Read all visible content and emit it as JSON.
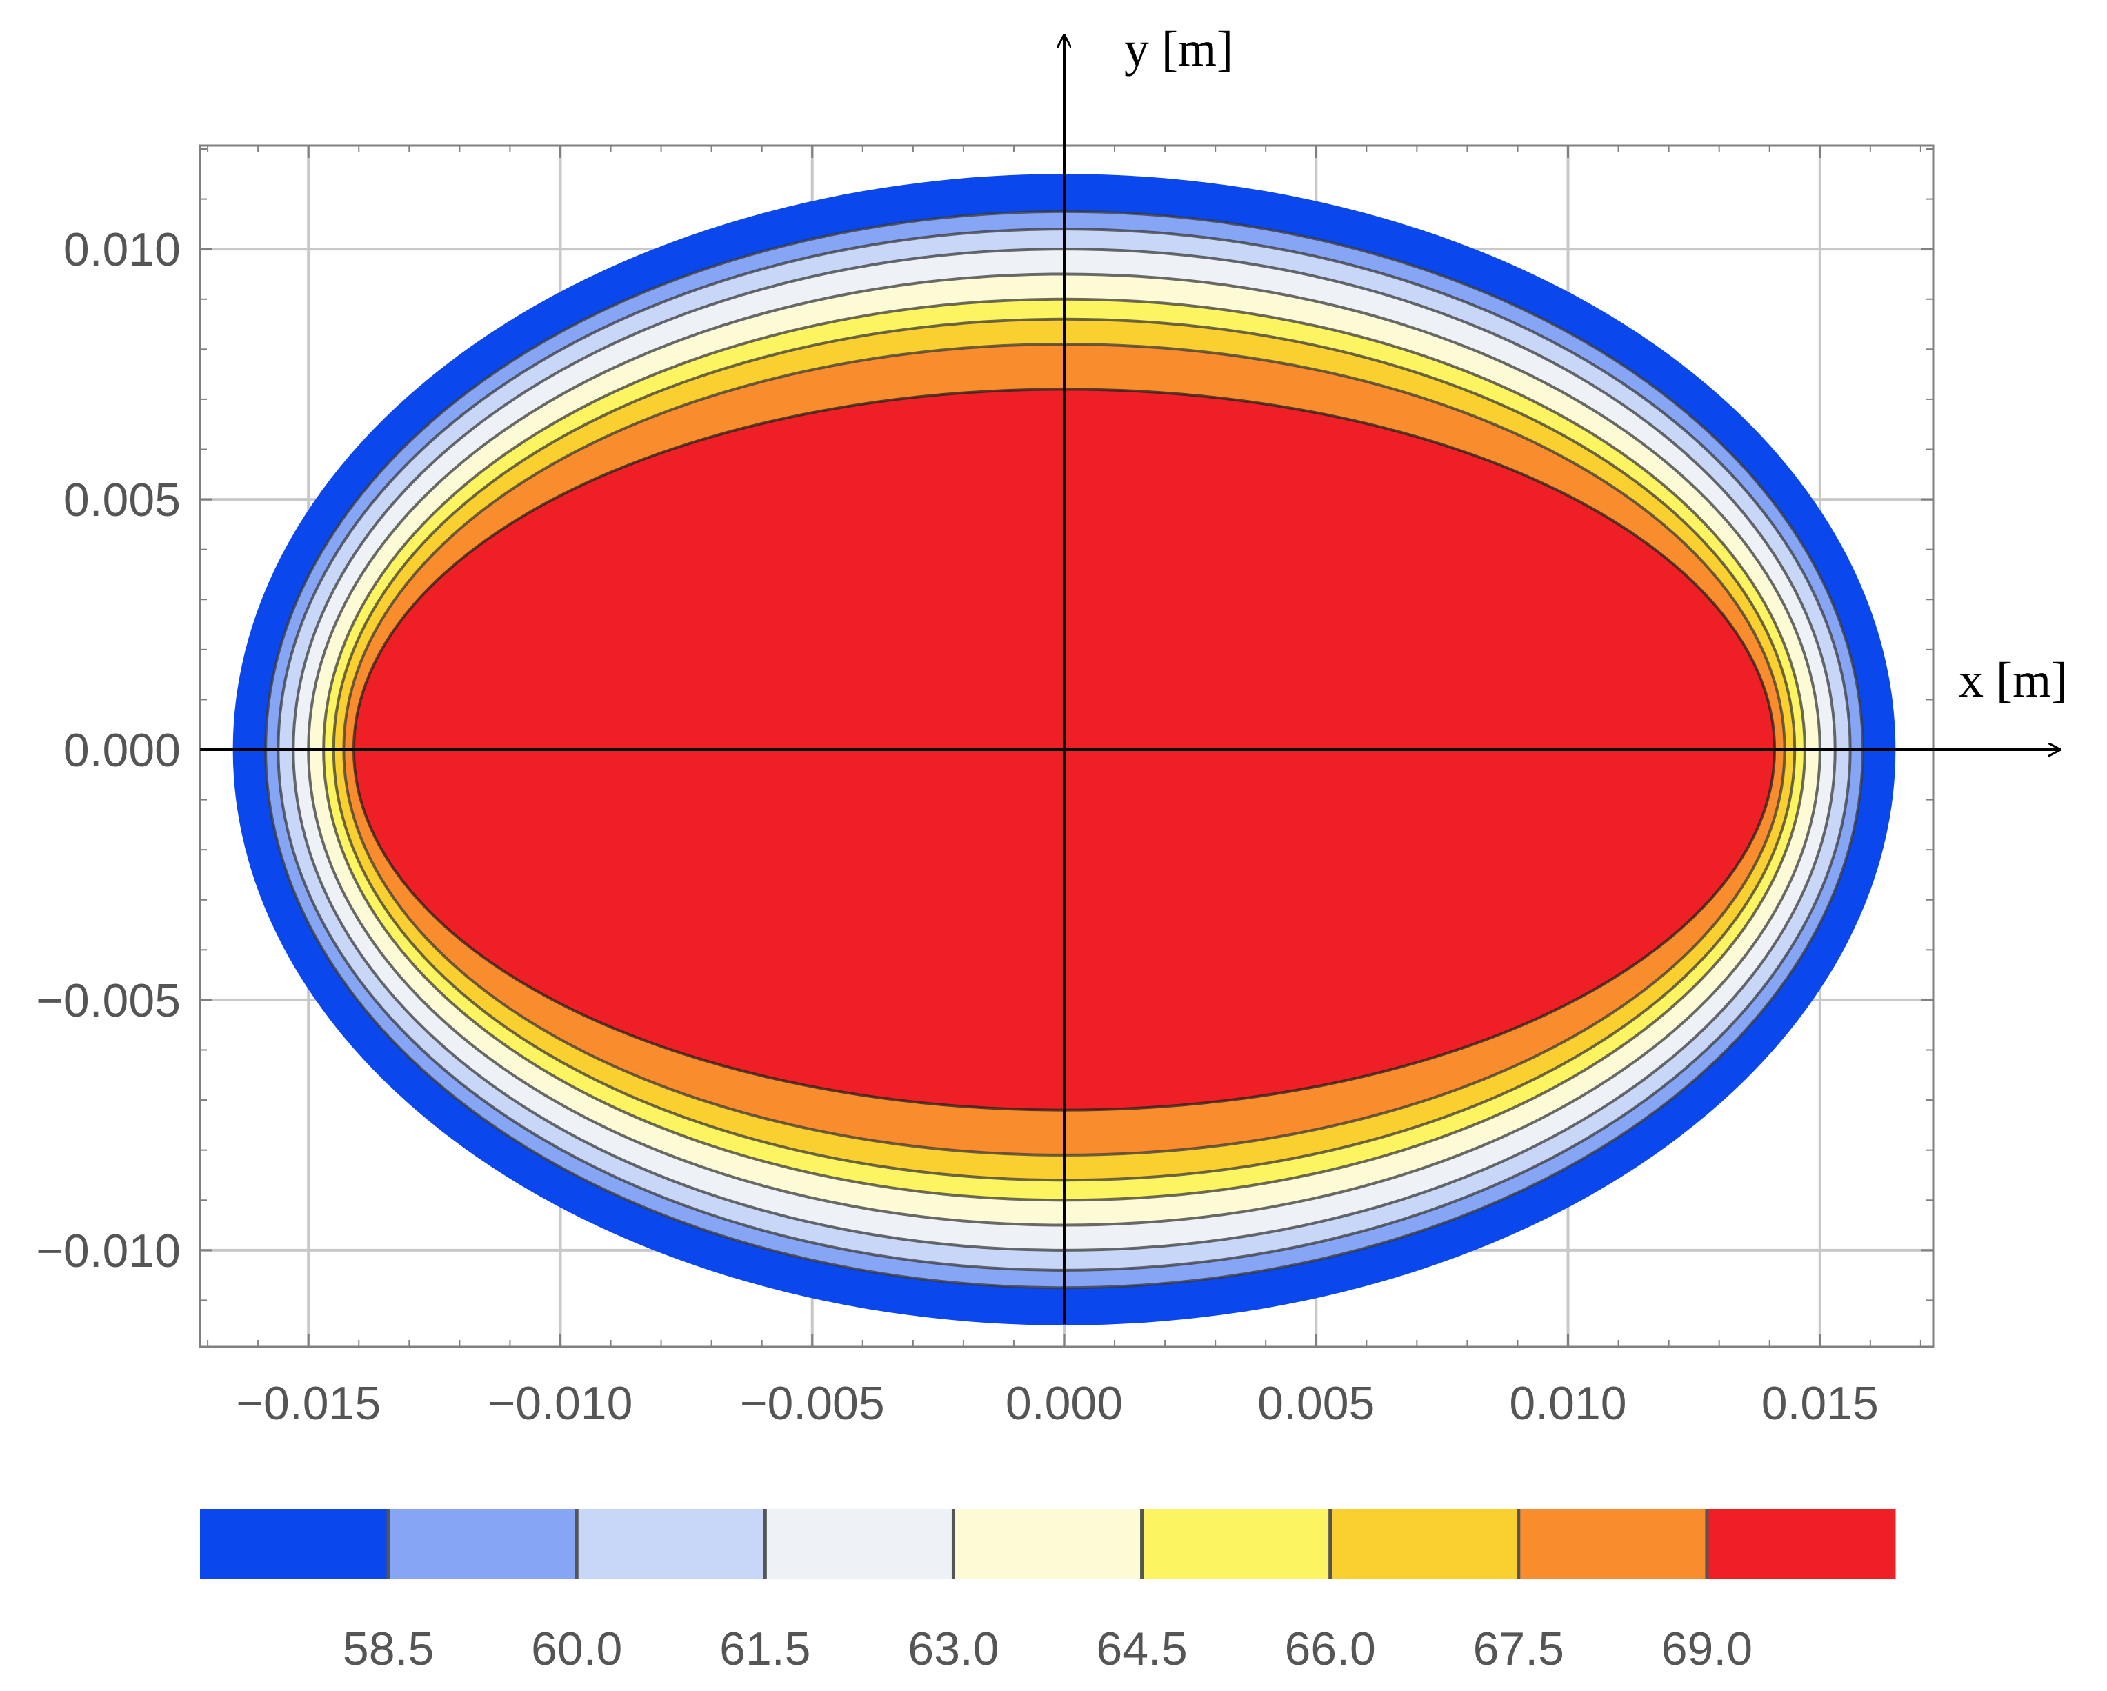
{
  "chart_data": {
    "type": "contour",
    "title": "",
    "xlabel": "x [m]",
    "ylabel": "y [m]",
    "xlim": [
      -0.0172,
      0.0172
    ],
    "ylim": [
      -0.012,
      0.012
    ],
    "x_ticks": [
      -0.015,
      -0.01,
      -0.005,
      0.0,
      0.005,
      0.01,
      0.015
    ],
    "y_ticks": [
      -0.01,
      -0.005,
      0.0,
      0.005,
      0.01
    ],
    "x_tick_labels": [
      "−0.015",
      "−0.010",
      "−0.005",
      "0.000",
      "0.005",
      "0.010",
      "0.015"
    ],
    "y_tick_labels": [
      "−0.010",
      "−0.005",
      "0.000",
      "0.005",
      "0.010"
    ],
    "grid": true,
    "domain_ellipse": {
      "semi_axis_x": 0.0165,
      "semi_axis_y": 0.0115
    },
    "contour_levels": [
      58.5,
      60.0,
      61.5,
      63.0,
      64.5,
      66.0,
      67.5,
      69.0
    ],
    "contour_level_labels": [
      "58.5",
      "60.0",
      "61.5",
      "63.0",
      "64.5",
      "66.0",
      "67.5",
      "69.0"
    ],
    "band_colors": [
      "#0a48ee",
      "#86a5f5",
      "#c8d6f8",
      "#eef2f7",
      "#fdfbd6",
      "#fdf461",
      "#f9d030",
      "#f98c2c",
      "#ee1f25"
    ],
    "contour_semi_axes": [
      {
        "level": 58.5,
        "ax": 0.01585,
        "ay": 0.01075
      },
      {
        "level": 60.0,
        "ax": 0.0156,
        "ay": 0.0104
      },
      {
        "level": 61.5,
        "ax": 0.0153,
        "ay": 0.01
      },
      {
        "level": 63.0,
        "ax": 0.015,
        "ay": 0.0095
      },
      {
        "level": 64.5,
        "ax": 0.0147,
        "ay": 0.009
      },
      {
        "level": 66.0,
        "ax": 0.0145,
        "ay": 0.0086
      },
      {
        "level": 67.5,
        "ax": 0.0143,
        "ay": 0.0081
      },
      {
        "level": 69.0,
        "ax": 0.0141,
        "ay": 0.0072
      }
    ],
    "legend": "colorbar-bottom"
  }
}
